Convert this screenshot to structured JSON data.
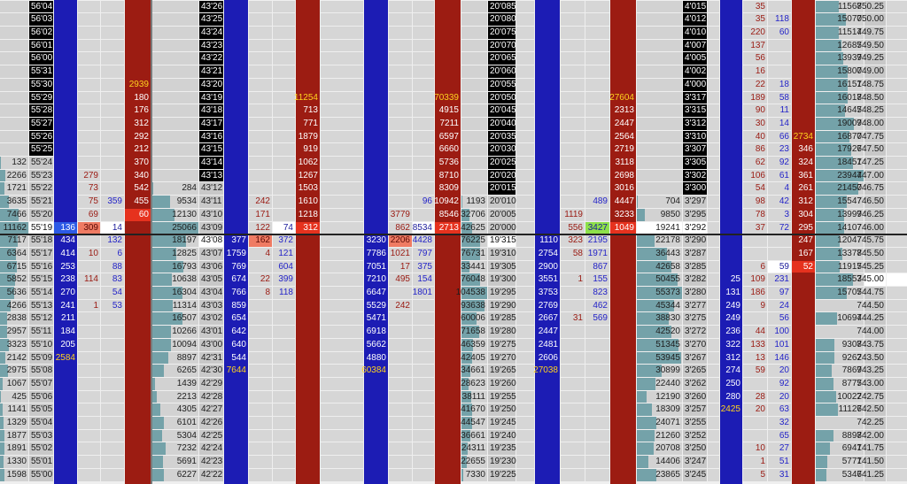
{
  "panels": [
    {
      "columns": {
        "price": [
          "56'04",
          "56'03",
          "56'02",
          "56'01",
          "56'00",
          "55'31",
          "55'30",
          "55'29",
          "55'28",
          "55'27",
          "55'26",
          "55'25",
          "55'24",
          "55'23",
          "55'22",
          "55'21",
          "55'20",
          "55'19",
          "55'18",
          "55'17",
          "55'16",
          "55'15",
          "55'14",
          "55'13",
          "55'12",
          "55'11",
          "55'10",
          "55'09",
          "55'08",
          "55'07",
          "55'06",
          "55'05",
          "55'04",
          "55'03",
          "55'02",
          "55'01",
          "55'00"
        ],
        "volume": [
          null,
          null,
          null,
          null,
          null,
          null,
          null,
          null,
          null,
          null,
          null,
          null,
          "132",
          "2266",
          "1721",
          "3635",
          "7466",
          "11162",
          "7117",
          "6364",
          "6715",
          "5852",
          "5636",
          "4266",
          "2838",
          "2957",
          "3323",
          "2142",
          "2975",
          "1067",
          "425",
          "1141",
          "1329",
          "1877",
          "1891",
          "1330",
          "1598"
        ],
        "bid": [
          null,
          null,
          null,
          null,
          null,
          null,
          null,
          null,
          null,
          null,
          null,
          null,
          null,
          null,
          null,
          null,
          null,
          "136",
          "434",
          "414",
          "253",
          "238",
          "270",
          "241",
          "211",
          "184",
          "205",
          "2584",
          null,
          null,
          null,
          null,
          null,
          null,
          null,
          null,
          null
        ],
        "sell": [
          null,
          null,
          null,
          null,
          null,
          null,
          null,
          null,
          null,
          null,
          null,
          null,
          null,
          "279",
          "73",
          "75",
          "69",
          "309",
          null,
          "10",
          null,
          "114",
          null,
          "1",
          null,
          null,
          null,
          null,
          null,
          null,
          null,
          null,
          null,
          null,
          null,
          null,
          null
        ],
        "buy": [
          null,
          null,
          null,
          null,
          null,
          null,
          null,
          null,
          null,
          null,
          null,
          null,
          null,
          null,
          null,
          "359",
          null,
          "14",
          "132",
          "6",
          "88",
          "83",
          "54",
          "53",
          null,
          null,
          null,
          null,
          null,
          null,
          null,
          null,
          null,
          null,
          null,
          null,
          null
        ],
        "ask": [
          null,
          null,
          null,
          null,
          null,
          null,
          "2939",
          "180",
          "176",
          "312",
          "292",
          "212",
          "370",
          "340",
          "542",
          "455",
          "60",
          null,
          null,
          null,
          null,
          null,
          null,
          null,
          null,
          null,
          null,
          null,
          null,
          null,
          null,
          null,
          null,
          null,
          null,
          null,
          null
        ]
      }
    },
    {
      "columns": {
        "price": [
          "43'26",
          "43'25",
          "43'24",
          "43'23",
          "43'22",
          "43'21",
          "43'20",
          "43'19",
          "43'18",
          "43'17",
          "43'16",
          "43'15",
          "43'14",
          "43'13",
          "43'12",
          "43'11",
          "43'10",
          "43'09",
          "43'08",
          "43'07",
          "43'06",
          "43'05",
          "43'04",
          "43'03",
          "43'02",
          "43'01",
          "43'00",
          "42'31",
          "42'30",
          "42'29",
          "42'28",
          "42'27",
          "42'26",
          "42'25",
          "42'24",
          "42'23",
          "42'22"
        ],
        "volume": [
          null,
          null,
          null,
          null,
          null,
          null,
          null,
          null,
          null,
          null,
          null,
          null,
          null,
          null,
          "284",
          "9534",
          "12130",
          "25066",
          "18197",
          "12825",
          "16793",
          "10638",
          "16304",
          "11314",
          "16507",
          "10266",
          "10094",
          "8897",
          "6265",
          "1439",
          "2213",
          "4305",
          "6101",
          "5304",
          "7232",
          "5691",
          "6227"
        ],
        "bid": [
          null,
          null,
          null,
          null,
          null,
          null,
          null,
          null,
          null,
          null,
          null,
          null,
          null,
          null,
          null,
          null,
          null,
          null,
          "377",
          "1759",
          "769",
          "674",
          "766",
          "859",
          "654",
          "642",
          "640",
          "544",
          "7644",
          null,
          null,
          null,
          null,
          null,
          null,
          null,
          null
        ],
        "sell": [
          null,
          null,
          null,
          null,
          null,
          null,
          null,
          null,
          null,
          null,
          null,
          null,
          null,
          null,
          null,
          "242",
          "171",
          "122",
          "162",
          "4",
          null,
          "22",
          "8",
          null,
          null,
          null,
          null,
          null,
          null,
          null,
          null,
          null,
          null,
          null,
          null,
          null,
          null
        ],
        "buy": [
          null,
          null,
          null,
          null,
          null,
          null,
          null,
          null,
          null,
          null,
          null,
          null,
          null,
          null,
          null,
          null,
          null,
          "74",
          "372",
          "121",
          "604",
          "399",
          "118",
          null,
          null,
          null,
          null,
          null,
          null,
          null,
          null,
          null,
          null,
          null,
          null,
          null,
          null
        ],
        "ask": [
          null,
          null,
          null,
          null,
          null,
          null,
          null,
          "11254",
          "713",
          "771",
          "1879",
          "919",
          "1062",
          "1267",
          "1503",
          "1610",
          "1218",
          "312",
          null,
          null,
          null,
          null,
          null,
          null,
          null,
          null,
          null,
          null,
          null,
          null,
          null,
          null,
          null,
          null,
          null,
          null,
          null
        ]
      }
    },
    {
      "columns": {
        "price": [
          "20'085",
          "20'080",
          "20'075",
          "20'070",
          "20'065",
          "20'060",
          "20'055",
          "20'050",
          "20'045",
          "20'040",
          "20'035",
          "20'030",
          "20'025",
          "20'020",
          "20'015",
          "20'010",
          "20'005",
          "20'000",
          "19'315",
          "19'310",
          "19'305",
          "19'300",
          "19'295",
          "19'290",
          "19'285",
          "19'280",
          "19'275",
          "19'270",
          "19'265",
          "19'260",
          "19'255",
          "19'250",
          "19'245",
          "19'240",
          "19'235",
          "19'230",
          "19'225"
        ],
        "volume": [
          null,
          null,
          null,
          null,
          null,
          null,
          null,
          null,
          null,
          null,
          null,
          null,
          null,
          null,
          null,
          "1193",
          "32706",
          "42625",
          "76225",
          "76731",
          "33441",
          "76048",
          "104538",
          "93638",
          "60006",
          "71658",
          "46359",
          "42405",
          "34661",
          "28623",
          "38111",
          "41670",
          "44547",
          "36661",
          "24311",
          "22655",
          "7330"
        ],
        "bid": [
          null,
          null,
          null,
          null,
          null,
          null,
          null,
          null,
          null,
          null,
          null,
          null,
          null,
          null,
          null,
          null,
          null,
          null,
          "3230",
          "7786",
          "7051",
          "7210",
          "6647",
          "5529",
          "5471",
          "6918",
          "5662",
          "4880",
          "60384",
          null,
          null,
          null,
          null,
          null,
          null,
          null,
          null
        ],
        "sell": [
          null,
          null,
          null,
          null,
          null,
          null,
          null,
          null,
          null,
          null,
          null,
          null,
          null,
          null,
          null,
          null,
          "3779",
          "862",
          "2206",
          "1021",
          "17",
          "495",
          null,
          "242",
          null,
          null,
          null,
          null,
          null,
          null,
          null,
          null,
          null,
          null,
          null,
          null,
          null
        ],
        "buy": [
          null,
          null,
          null,
          null,
          null,
          null,
          null,
          null,
          null,
          null,
          null,
          null,
          null,
          null,
          null,
          "96",
          null,
          "8534",
          "4428",
          "797",
          "375",
          "154",
          "1801",
          null,
          null,
          null,
          null,
          null,
          null,
          null,
          null,
          null,
          null,
          null,
          null,
          null,
          null
        ],
        "ask": [
          null,
          null,
          null,
          null,
          null,
          null,
          null,
          "70339",
          "4915",
          "7211",
          "6597",
          "6660",
          "5736",
          "8710",
          "8309",
          "10942",
          "8546",
          "2713",
          null,
          null,
          null,
          null,
          null,
          null,
          null,
          null,
          null,
          null,
          null,
          null,
          null,
          null,
          null,
          null,
          null,
          null,
          null
        ]
      }
    },
    {
      "columns": {
        "price": [
          "4'015",
          "4'012",
          "4'010",
          "4'007",
          "4'005",
          "4'002",
          "4'000",
          "3'317",
          "3'315",
          "3'312",
          "3'310",
          "3'307",
          "3'305",
          "3'302",
          "3'300",
          "3'297",
          "3'295",
          "3'292",
          "3'290",
          "3'287",
          "3'285",
          "3'282",
          "3'280",
          "3'277",
          "3'275",
          "3'272",
          "3'270",
          "3'267",
          "3'265",
          "3'262",
          "3'260",
          "3'257",
          "3'255",
          "3'252",
          "3'250",
          "3'247",
          "3'245"
        ],
        "volume": [
          null,
          null,
          null,
          null,
          null,
          null,
          null,
          null,
          null,
          null,
          null,
          null,
          null,
          null,
          null,
          "704",
          "9850",
          "19241",
          "22178",
          "36443",
          "42658",
          "50455",
          "55373",
          "45344",
          "38830",
          "42520",
          "51345",
          "53945",
          "30899",
          "22440",
          "12190",
          "18309",
          "24071",
          "21260",
          "20708",
          "14406",
          "23865"
        ],
        "bid": [
          null,
          null,
          null,
          null,
          null,
          null,
          null,
          null,
          null,
          null,
          null,
          null,
          null,
          null,
          null,
          null,
          null,
          null,
          "1110",
          "2754",
          "2900",
          "3551",
          "3753",
          "2769",
          "2667",
          "2447",
          "2481",
          "2606",
          "27038",
          null,
          null,
          null,
          null,
          null,
          null,
          null,
          null
        ],
        "sell": [
          null,
          null,
          null,
          null,
          null,
          null,
          null,
          null,
          null,
          null,
          null,
          null,
          null,
          null,
          null,
          null,
          "1119",
          "556",
          "323",
          "58",
          null,
          "1",
          null,
          null,
          "31",
          null,
          null,
          null,
          null,
          null,
          null,
          null,
          null,
          null,
          null,
          null,
          null
        ],
        "buy": [
          null,
          null,
          null,
          null,
          null,
          null,
          null,
          null,
          null,
          null,
          null,
          null,
          null,
          null,
          null,
          "489",
          null,
          "3427",
          "2195",
          "1971",
          "867",
          "155",
          "823",
          "462",
          "569",
          null,
          null,
          null,
          null,
          null,
          null,
          null,
          null,
          null,
          null,
          null,
          null
        ],
        "ask": [
          null,
          null,
          null,
          null,
          null,
          null,
          null,
          "27604",
          "2313",
          "2447",
          "2564",
          "2719",
          "3118",
          "2698",
          "3016",
          "4447",
          "3233",
          "1049",
          null,
          null,
          null,
          null,
          null,
          null,
          null,
          null,
          null,
          null,
          null,
          null,
          null,
          null,
          null,
          null,
          null,
          null,
          null
        ]
      }
    },
    {
      "columns": {
        "price": [
          "750.25",
          "750.00",
          "749.75",
          "749.50",
          "749.25",
          "749.00",
          "748.75",
          "748.50",
          "748.25",
          "748.00",
          "747.75",
          "747.50",
          "747.25",
          "747.00",
          "746.75",
          "746.50",
          "746.25",
          "746.00",
          "745.75",
          "745.50",
          "745.25",
          "745.00",
          "744.75",
          "744.50",
          "744.25",
          "744.00",
          "743.75",
          "743.50",
          "743.25",
          "743.00",
          "742.75",
          "742.50",
          "742.25",
          "742.00",
          "741.75",
          "741.50",
          "741.25"
        ],
        "volume": [
          "11568",
          "15070",
          "11514",
          "12685",
          "13939",
          "15800",
          "16151",
          "16018",
          "14645",
          "19009",
          "16870",
          "17926",
          "18451",
          "23944",
          "21450",
          "15547",
          "13999",
          "14107",
          "12047",
          "13378",
          "11915",
          "18553",
          "15705",
          null,
          "10694",
          null,
          "9308",
          "9262",
          "7869",
          "8775",
          "10022",
          "11126",
          null,
          "8898",
          "6941",
          "5771",
          "5346"
        ],
        "bid": [
          null,
          null,
          null,
          null,
          null,
          null,
          null,
          null,
          null,
          null,
          null,
          null,
          null,
          null,
          null,
          null,
          null,
          null,
          null,
          null,
          null,
          "25",
          "131",
          "249",
          "249",
          "236",
          "322",
          "312",
          "274",
          "250",
          "280",
          "2425",
          null,
          null,
          null,
          null,
          null
        ],
        "sell": [
          "35",
          "35",
          "220",
          "137",
          "56",
          "16",
          "22",
          "189",
          "90",
          "30",
          "40",
          "86",
          "62",
          "106",
          "54",
          "98",
          "78",
          "37",
          null,
          null,
          "6",
          "109",
          "186",
          "9",
          null,
          "44",
          "133",
          "13",
          "59",
          null,
          "28",
          "20",
          null,
          null,
          "10",
          "1",
          "5"
        ],
        "buy": [
          null,
          "118",
          "60",
          null,
          null,
          null,
          "18",
          "58",
          "11",
          "14",
          "66",
          "23",
          "92",
          "61",
          "4",
          "42",
          "3",
          "72",
          null,
          null,
          "59",
          "231",
          "97",
          "24",
          "56",
          "100",
          "101",
          "146",
          "20",
          "92",
          "20",
          "63",
          "32",
          "65",
          "27",
          "51",
          "31"
        ],
        "ask": [
          null,
          null,
          null,
          null,
          null,
          null,
          null,
          null,
          null,
          null,
          "2734",
          "346",
          "324",
          "361",
          "261",
          "312",
          "304",
          "295",
          "247",
          "167",
          "52",
          null,
          null,
          null,
          null,
          null,
          null,
          null,
          null,
          null,
          null,
          null,
          null,
          null,
          null,
          null,
          null
        ]
      }
    }
  ]
}
